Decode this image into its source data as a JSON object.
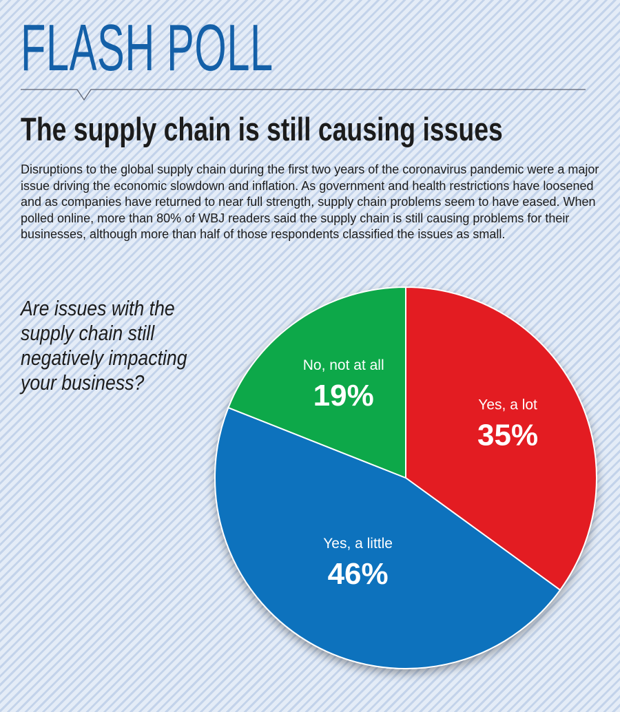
{
  "kicker": "FLASH POLL",
  "headline": "The supply chain is still causing issues",
  "intro": "Disruptions to the global supply chain during the first two years of the coronavirus pandemic were a major issue driving the economic slowdown and inflation. As government and health restrictions have loosened and as companies have returned to near full strength, supply chain problems seem to have eased. When polled online, more than 80% of WBJ readers said the supply chain is still causing problems for their businesses, although more than half of those respondents classified the issues as small.",
  "question": "Are issues with the supply chain still negatively impacting your business?",
  "colors": {
    "kicker": "#1460a8",
    "background": "#cfdcf0"
  },
  "chart_data": {
    "type": "pie",
    "title": "Are issues with the supply chain still negatively impacting your business?",
    "slices": [
      {
        "label": "Yes, a lot",
        "value": 35,
        "display": "35%",
        "color": "#e31e24"
      },
      {
        "label": "Yes, a little",
        "value": 46,
        "display": "46%",
        "color": "#0a72bd"
      },
      {
        "label": "No, not at all",
        "value": 19,
        "display": "19%",
        "color": "#0fa84a"
      }
    ],
    "start": "12 o'clock",
    "direction": "clockwise"
  }
}
